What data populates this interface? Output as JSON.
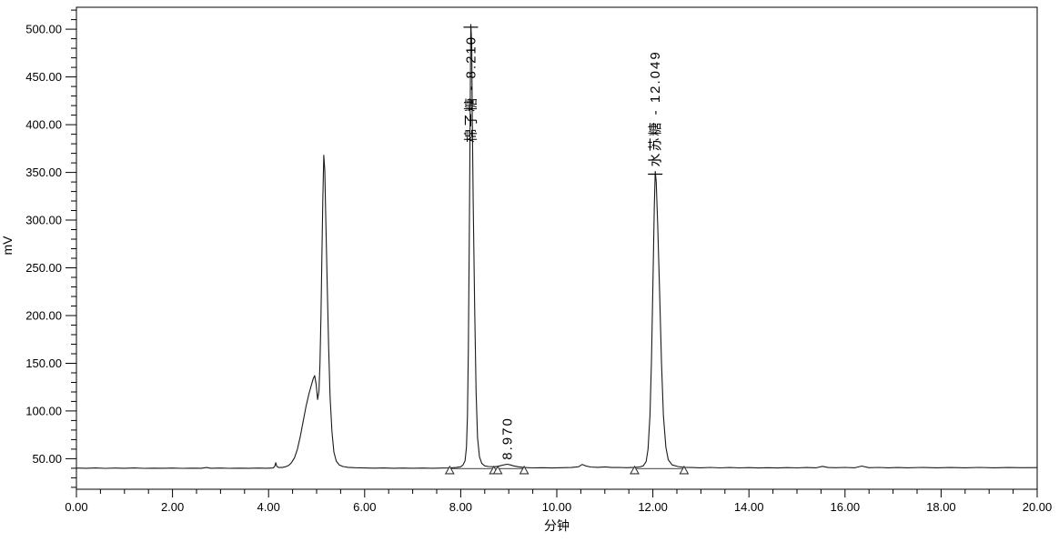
{
  "chart_data": {
    "type": "line",
    "title": "",
    "xlabel": "分钟",
    "ylabel": "mV",
    "xlim": [
      0,
      20
    ],
    "ylim": [
      18,
      523
    ],
    "grid": false,
    "background_color": "#ffffff",
    "line_color": "#1a1a1a",
    "x_major_tick_values": [
      0,
      2,
      4,
      6,
      8,
      10,
      12,
      14,
      16,
      18,
      20
    ],
    "x_major_tick_labels": [
      "0.00",
      "2.00",
      "4.00",
      "6.00",
      "8.00",
      "10.00",
      "12.00",
      "14.00",
      "16.00",
      "18.00",
      "20.00"
    ],
    "x_minor_step": 0.5,
    "y_major_tick_values": [
      50,
      100,
      150,
      200,
      250,
      300,
      350,
      400,
      450,
      500
    ],
    "y_major_tick_labels": [
      "50.00",
      "100.00",
      "150.00",
      "200.00",
      "250.00",
      "300.00",
      "350.00",
      "400.00",
      "450.00",
      "500.00"
    ],
    "y_minor_step": 10,
    "baseline_mv": 40,
    "peaks": [
      {
        "name": "棉子糖",
        "rt": 8.21,
        "rt_label": "8.210",
        "height_mv": 505,
        "label": "棉子糖 - 8.210",
        "label_position": "below-apex",
        "apex_tick": true
      },
      {
        "name": "",
        "rt": 8.97,
        "rt_label": "8.970",
        "height_mv": 44,
        "label": "8.970",
        "label_position": "above-apex",
        "apex_tick": false
      },
      {
        "name": "水苏糖",
        "rt": 12.049,
        "rt_label": "12.049",
        "height_mv": 351,
        "label": "水苏糖 - 12.049",
        "label_position": "above-apex",
        "apex_tick": true
      },
      {
        "name": "",
        "rt": 5.15,
        "rt_label": "",
        "height_mv": 368,
        "label": "",
        "label_position": "none",
        "apex_tick": false
      }
    ],
    "integration_markers_min": [
      7.77,
      8.69,
      8.77,
      9.32,
      11.62,
      12.65
    ],
    "integration_baselines": [
      [
        7.77,
        8.69
      ],
      [
        8.77,
        9.32
      ],
      [
        11.62,
        12.65
      ]
    ],
    "trace": [
      [
        0.0,
        40.2
      ],
      [
        0.2,
        40.0
      ],
      [
        0.4,
        40.3
      ],
      [
        0.6,
        39.9
      ],
      [
        0.8,
        40.2
      ],
      [
        1.0,
        40.0
      ],
      [
        1.2,
        40.3
      ],
      [
        1.4,
        39.9
      ],
      [
        1.6,
        40.1
      ],
      [
        1.8,
        40.0
      ],
      [
        2.0,
        40.2
      ],
      [
        2.2,
        39.9
      ],
      [
        2.4,
        40.1
      ],
      [
        2.6,
        40.0
      ],
      [
        2.71,
        40.8
      ],
      [
        2.8,
        40.0
      ],
      [
        3.0,
        40.2
      ],
      [
        3.2,
        39.9
      ],
      [
        3.4,
        40.1
      ],
      [
        3.6,
        40.0
      ],
      [
        3.8,
        40.2
      ],
      [
        3.95,
        40.0
      ],
      [
        4.05,
        40.2
      ],
      [
        4.1,
        40.3
      ],
      [
        4.13,
        42.5
      ],
      [
        4.15,
        45.8
      ],
      [
        4.17,
        42.0
      ],
      [
        4.21,
        40.8
      ],
      [
        4.28,
        40.8
      ],
      [
        4.35,
        41.5
      ],
      [
        4.42,
        43.0
      ],
      [
        4.48,
        46.0
      ],
      [
        4.54,
        51.0
      ],
      [
        4.6,
        60.0
      ],
      [
        4.66,
        73.0
      ],
      [
        4.72,
        89.0
      ],
      [
        4.78,
        105.0
      ],
      [
        4.84,
        118.0
      ],
      [
        4.89,
        127.0
      ],
      [
        4.93,
        134.0
      ],
      [
        4.96,
        137.0
      ],
      [
        4.99,
        128.0
      ],
      [
        5.02,
        112.0
      ],
      [
        5.05,
        121.0
      ],
      [
        5.07,
        150.0
      ],
      [
        5.09,
        200.0
      ],
      [
        5.11,
        262.0
      ],
      [
        5.13,
        325.0
      ],
      [
        5.15,
        368.0
      ],
      [
        5.17,
        352.0
      ],
      [
        5.19,
        305.0
      ],
      [
        5.22,
        235.0
      ],
      [
        5.25,
        168.0
      ],
      [
        5.28,
        115.0
      ],
      [
        5.32,
        78.0
      ],
      [
        5.36,
        57.0
      ],
      [
        5.41,
        47.5
      ],
      [
        5.47,
        43.5
      ],
      [
        5.55,
        41.8
      ],
      [
        5.65,
        41.0
      ],
      [
        5.8,
        40.6
      ],
      [
        6.0,
        40.3
      ],
      [
        6.2,
        40.1
      ],
      [
        6.4,
        40.3
      ],
      [
        6.6,
        40.0
      ],
      [
        6.8,
        40.2
      ],
      [
        7.0,
        40.0
      ],
      [
        7.2,
        40.2
      ],
      [
        7.4,
        40.0
      ],
      [
        7.6,
        40.2
      ],
      [
        7.77,
        40.3
      ],
      [
        7.9,
        40.8
      ],
      [
        8.0,
        41.5
      ],
      [
        8.05,
        43.5
      ],
      [
        8.09,
        48.0
      ],
      [
        8.12,
        62.0
      ],
      [
        8.14,
        95.0
      ],
      [
        8.16,
        165.0
      ],
      [
        8.18,
        290.0
      ],
      [
        8.2,
        440.0
      ],
      [
        8.21,
        505.0
      ],
      [
        8.23,
        485.0
      ],
      [
        8.24,
        410.0
      ],
      [
        8.26,
        320.0
      ],
      [
        8.29,
        210.0
      ],
      [
        8.32,
        120.0
      ],
      [
        8.35,
        72.0
      ],
      [
        8.39,
        52.0
      ],
      [
        8.44,
        45.0
      ],
      [
        8.5,
        42.5
      ],
      [
        8.58,
        41.8
      ],
      [
        8.69,
        41.5
      ],
      [
        8.77,
        42.0
      ],
      [
        8.85,
        43.0
      ],
      [
        8.92,
        43.8
      ],
      [
        8.97,
        44.2
      ],
      [
        9.03,
        43.5
      ],
      [
        9.1,
        42.5
      ],
      [
        9.2,
        41.5
      ],
      [
        9.32,
        40.8
      ],
      [
        9.5,
        40.4
      ],
      [
        9.7,
        40.6
      ],
      [
        9.9,
        40.3
      ],
      [
        10.1,
        40.6
      ],
      [
        10.3,
        40.8
      ],
      [
        10.45,
        41.5
      ],
      [
        10.53,
        44.0
      ],
      [
        10.6,
        42.5
      ],
      [
        10.7,
        41.3
      ],
      [
        10.85,
        41.0
      ],
      [
        11.0,
        41.4
      ],
      [
        11.15,
        40.8
      ],
      [
        11.3,
        40.9
      ],
      [
        11.45,
        40.6
      ],
      [
        11.62,
        41.0
      ],
      [
        11.72,
        41.3
      ],
      [
        11.8,
        42.5
      ],
      [
        11.86,
        47.0
      ],
      [
        11.9,
        60.0
      ],
      [
        11.94,
        95.0
      ],
      [
        11.97,
        150.0
      ],
      [
        12.0,
        230.0
      ],
      [
        12.03,
        315.0
      ],
      [
        12.05,
        351.0
      ],
      [
        12.07,
        340.0
      ],
      [
        12.1,
        295.0
      ],
      [
        12.14,
        225.0
      ],
      [
        12.18,
        150.0
      ],
      [
        12.22,
        95.0
      ],
      [
        12.27,
        62.0
      ],
      [
        12.32,
        49.0
      ],
      [
        12.4,
        43.5
      ],
      [
        12.52,
        41.8
      ],
      [
        12.65,
        41.0
      ],
      [
        12.8,
        40.8
      ],
      [
        13.0,
        40.5
      ],
      [
        13.2,
        40.9
      ],
      [
        13.4,
        40.4
      ],
      [
        13.6,
        40.8
      ],
      [
        13.8,
        40.4
      ],
      [
        14.0,
        40.7
      ],
      [
        14.2,
        40.3
      ],
      [
        14.4,
        40.6
      ],
      [
        14.6,
        40.3
      ],
      [
        14.8,
        40.7
      ],
      [
        15.0,
        40.4
      ],
      [
        15.2,
        40.8
      ],
      [
        15.4,
        40.5
      ],
      [
        15.53,
        42.0
      ],
      [
        15.65,
        40.8
      ],
      [
        15.8,
        40.6
      ],
      [
        16.0,
        40.9
      ],
      [
        16.2,
        40.5
      ],
      [
        16.35,
        42.3
      ],
      [
        16.5,
        40.6
      ],
      [
        16.7,
        40.9
      ],
      [
        16.9,
        40.5
      ],
      [
        17.1,
        40.8
      ],
      [
        17.3,
        40.5
      ],
      [
        17.6,
        40.9
      ],
      [
        17.9,
        40.5
      ],
      [
        18.2,
        40.8
      ],
      [
        18.5,
        40.5
      ],
      [
        18.8,
        40.9
      ],
      [
        19.1,
        40.5
      ],
      [
        19.4,
        40.8
      ],
      [
        19.7,
        40.6
      ],
      [
        20.0,
        40.7
      ]
    ]
  }
}
